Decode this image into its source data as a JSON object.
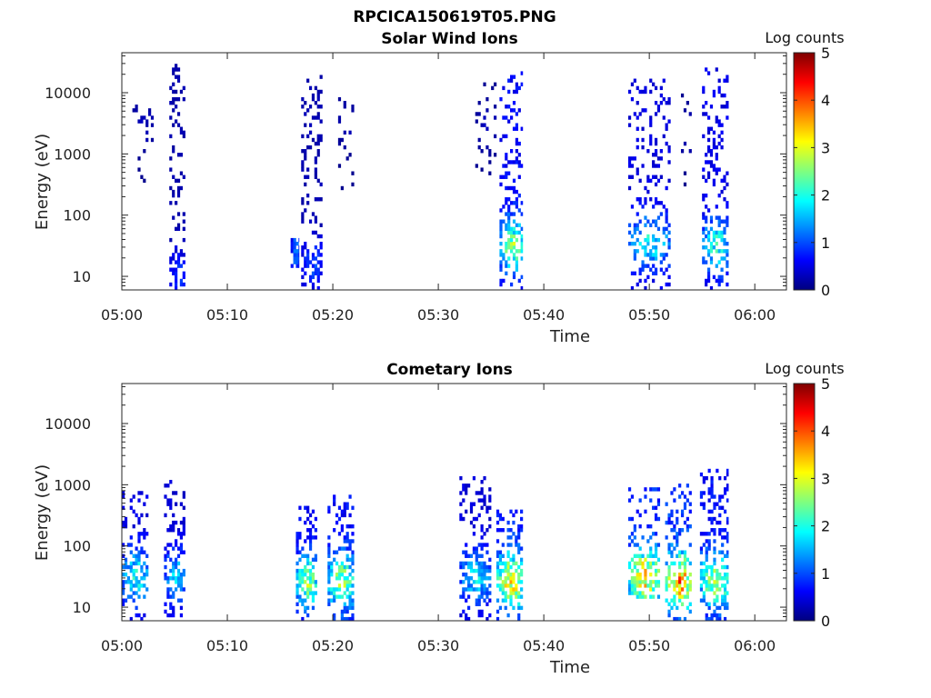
{
  "figure_title": "RPCICA150619T05.PNG",
  "colormap": [
    "#00007f",
    "#0000ff",
    "#007fff",
    "#00ffff",
    "#7fff7f",
    "#ffff00",
    "#ff7f00",
    "#ff0000",
    "#7f0000"
  ],
  "chart_data": [
    {
      "type": "heatmap",
      "title": "Solar Wind Ions",
      "xlabel": "Time",
      "ylabel": "Energy (eV)",
      "y_scale": "log",
      "xlim": [
        "05:00",
        "06:03"
      ],
      "ylim": [
        6,
        45000
      ],
      "x_ticks": [
        "05:00",
        "05:10",
        "05:20",
        "05:30",
        "05:40",
        "05:50",
        "06:00"
      ],
      "y_ticks": [
        10,
        100,
        1000,
        10000
      ],
      "y_tick_labels": [
        "10",
        "100",
        "1000",
        "10000"
      ],
      "colorbar": {
        "label": "Log counts",
        "range": [
          0,
          5
        ],
        "ticks": [
          "0",
          "1",
          "2",
          "3",
          "4",
          "5"
        ]
      },
      "bursts": [
        {
          "start": "05:01",
          "end": "05:03",
          "emin": 300,
          "emax": 11000,
          "peak": 0.3,
          "peak_energy": 3000,
          "density": 0.18
        },
        {
          "start": "05:04.5",
          "end": "05:06",
          "emin": 6,
          "emax": 30000,
          "peak": 0.9,
          "peak_energy": 10,
          "density": 0.5
        },
        {
          "start": "05:16",
          "end": "05:16.8",
          "emin": 15,
          "emax": 40,
          "peak": 1.3,
          "peak_energy": 25,
          "density": 0.7
        },
        {
          "start": "05:17",
          "end": "05:19",
          "emin": 6,
          "emax": 17000,
          "peak": 1.0,
          "peak_energy": 15,
          "density": 0.45
        },
        {
          "start": "05:20.5",
          "end": "05:22",
          "emin": 280,
          "emax": 10000,
          "peak": 0.3,
          "peak_energy": 3000,
          "density": 0.22
        },
        {
          "start": "05:33.5",
          "end": "05:35.5",
          "emin": 500,
          "emax": 13000,
          "peak": 0.3,
          "peak_energy": 3000,
          "density": 0.15
        },
        {
          "start": "05:35.8",
          "end": "05:38",
          "emin": 6,
          "emax": 22000,
          "peak": 2.6,
          "peak_energy": 30,
          "density": 0.5
        },
        {
          "start": "05:48",
          "end": "05:52",
          "emin": 6,
          "emax": 16000,
          "peak": 1.9,
          "peak_energy": 35,
          "density": 0.42
        },
        {
          "start": "05:53",
          "end": "05:54",
          "emin": 300,
          "emax": 11000,
          "peak": 0.3,
          "peak_energy": 2000,
          "density": 0.2
        },
        {
          "start": "05:55",
          "end": "05:57.5",
          "emin": 6,
          "emax": 23000,
          "peak": 2.1,
          "peak_energy": 30,
          "density": 0.45
        }
      ]
    },
    {
      "type": "heatmap",
      "title": "Cometary Ions",
      "xlabel": "Time",
      "ylabel": "Energy (eV)",
      "y_scale": "log",
      "xlim": [
        "05:00",
        "06:03"
      ],
      "ylim": [
        6,
        45000
      ],
      "x_ticks": [
        "05:00",
        "05:10",
        "05:20",
        "05:30",
        "05:40",
        "05:50",
        "06:00"
      ],
      "y_ticks": [
        10,
        100,
        1000,
        10000
      ],
      "y_tick_labels": [
        "10",
        "100",
        "1000",
        "10000"
      ],
      "colorbar": {
        "label": "Log counts",
        "range": [
          0,
          5
        ],
        "ticks": [
          "0",
          "1",
          "2",
          "3",
          "4",
          "5"
        ]
      },
      "bursts": [
        {
          "start": "05:00",
          "end": "05:02.5",
          "emin": 6,
          "emax": 700,
          "peak": 2.0,
          "peak_energy": 30,
          "density": 0.55
        },
        {
          "start": "05:04",
          "end": "05:06",
          "emin": 6,
          "emax": 1100,
          "peak": 1.7,
          "peak_energy": 30,
          "density": 0.55
        },
        {
          "start": "05:16.5",
          "end": "05:18.5",
          "emin": 6,
          "emax": 400,
          "peak": 2.6,
          "peak_energy": 25,
          "density": 0.6
        },
        {
          "start": "05:19.5",
          "end": "05:22",
          "emin": 6,
          "emax": 600,
          "peak": 2.7,
          "peak_energy": 25,
          "density": 0.6
        },
        {
          "start": "05:32",
          "end": "05:35",
          "emin": 6,
          "emax": 1200,
          "peak": 1.8,
          "peak_energy": 30,
          "density": 0.55
        },
        {
          "start": "05:35.5",
          "end": "05:38",
          "emin": 6,
          "emax": 350,
          "peak": 3.3,
          "peak_energy": 25,
          "density": 0.6
        },
        {
          "start": "05:48",
          "end": "05:51",
          "emin": 15,
          "emax": 800,
          "peak": 3.4,
          "peak_energy": 30,
          "density": 0.65
        },
        {
          "start": "05:51.5",
          "end": "05:54",
          "emin": 6,
          "emax": 1000,
          "peak": 3.7,
          "peak_energy": 25,
          "density": 0.65
        },
        {
          "start": "05:54.8",
          "end": "05:57.5",
          "emin": 6,
          "emax": 1800,
          "peak": 2.8,
          "peak_energy": 25,
          "density": 0.6
        }
      ]
    }
  ]
}
